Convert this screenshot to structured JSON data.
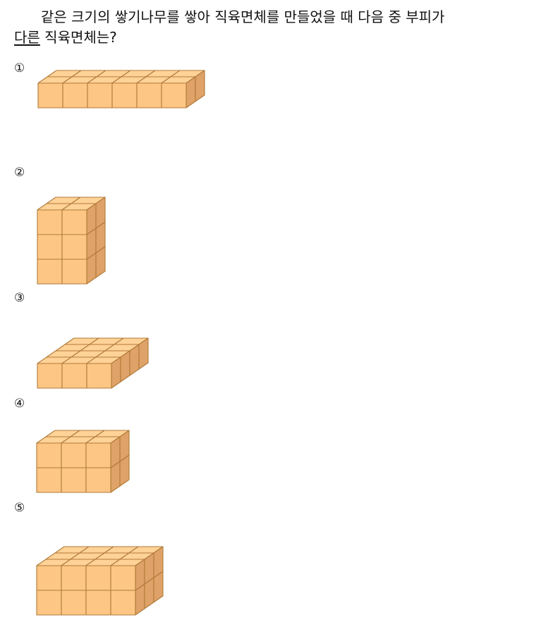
{
  "question": {
    "line1": "같은 크기의 쌓기나무를 쌓아 직육면체를 만들었을 때 다음 중 부피가",
    "underlined_word": "다른",
    "line2_rest": " 직육면체는?"
  },
  "choices": [
    {
      "marker": "①",
      "blocks": {
        "width": 6,
        "depth": 2,
        "height": 1
      }
    },
    {
      "marker": "②",
      "blocks": {
        "width": 2,
        "depth": 2,
        "height": 3
      }
    },
    {
      "marker": "③",
      "blocks": {
        "width": 3,
        "depth": 4,
        "height": 1
      }
    },
    {
      "marker": "④",
      "blocks": {
        "width": 3,
        "depth": 2,
        "height": 2
      }
    },
    {
      "marker": "⑤",
      "blocks": {
        "width": 4,
        "depth": 3,
        "height": 2
      }
    }
  ],
  "colors": {
    "top": "#ffd297",
    "front": "#fdc685",
    "side": "#dfa268",
    "edge": "#b07a38"
  }
}
